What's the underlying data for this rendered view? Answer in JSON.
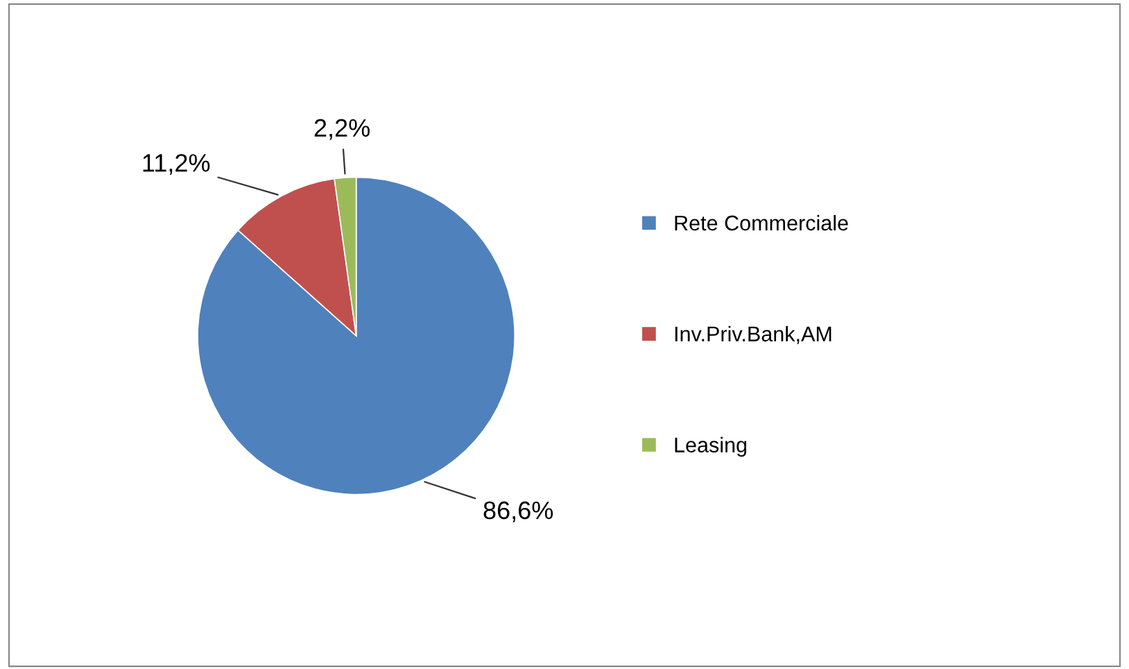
{
  "chart_data": {
    "type": "pie",
    "categories": [
      "Rete Commerciale",
      "Inv.Priv.Bank,AM",
      "Leasing"
    ],
    "values": [
      86.6,
      11.2,
      2.2
    ],
    "colors": [
      "#4f81bd",
      "#c0504d",
      "#9bbb59"
    ],
    "value_labels": [
      "86,6%",
      "11,2%",
      "2,2%"
    ],
    "legend": "right"
  }
}
